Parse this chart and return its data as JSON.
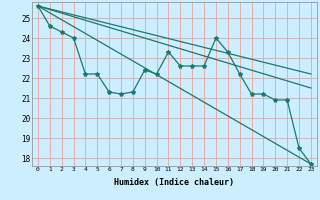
{
  "title": "",
  "xlabel": "Humidex (Indice chaleur)",
  "ylabel": "",
  "background_color": "#cceeff",
  "grid_color": "#e8aaaa",
  "line_color": "#1a7a6e",
  "xlim": [
    -0.5,
    23.5
  ],
  "ylim": [
    17.6,
    25.8
  ],
  "yticks": [
    18,
    19,
    20,
    21,
    22,
    23,
    24,
    25
  ],
  "xticks": [
    0,
    1,
    2,
    3,
    4,
    5,
    6,
    7,
    8,
    9,
    10,
    11,
    12,
    13,
    14,
    15,
    16,
    17,
    18,
    19,
    20,
    21,
    22,
    23
  ],
  "line_jagged": {
    "x": [
      0,
      1,
      2,
      3,
      4,
      5,
      6,
      7,
      8,
      9,
      10,
      11,
      12,
      13,
      14,
      15,
      16,
      17,
      18,
      19,
      20,
      21,
      22,
      23
    ],
    "y": [
      25.6,
      24.6,
      24.3,
      24.0,
      22.2,
      22.2,
      21.3,
      21.2,
      21.3,
      22.4,
      22.2,
      23.3,
      22.6,
      22.6,
      22.6,
      24.0,
      23.3,
      22.2,
      21.2,
      21.2,
      20.9,
      20.9,
      18.5,
      17.7
    ]
  },
  "line_flat1": {
    "x": [
      0,
      23
    ],
    "y": [
      25.6,
      22.2
    ]
  },
  "line_flat2": {
    "x": [
      0,
      23
    ],
    "y": [
      25.6,
      21.5
    ]
  },
  "line_flat3": {
    "x": [
      0,
      23
    ],
    "y": [
      25.6,
      17.7
    ]
  }
}
